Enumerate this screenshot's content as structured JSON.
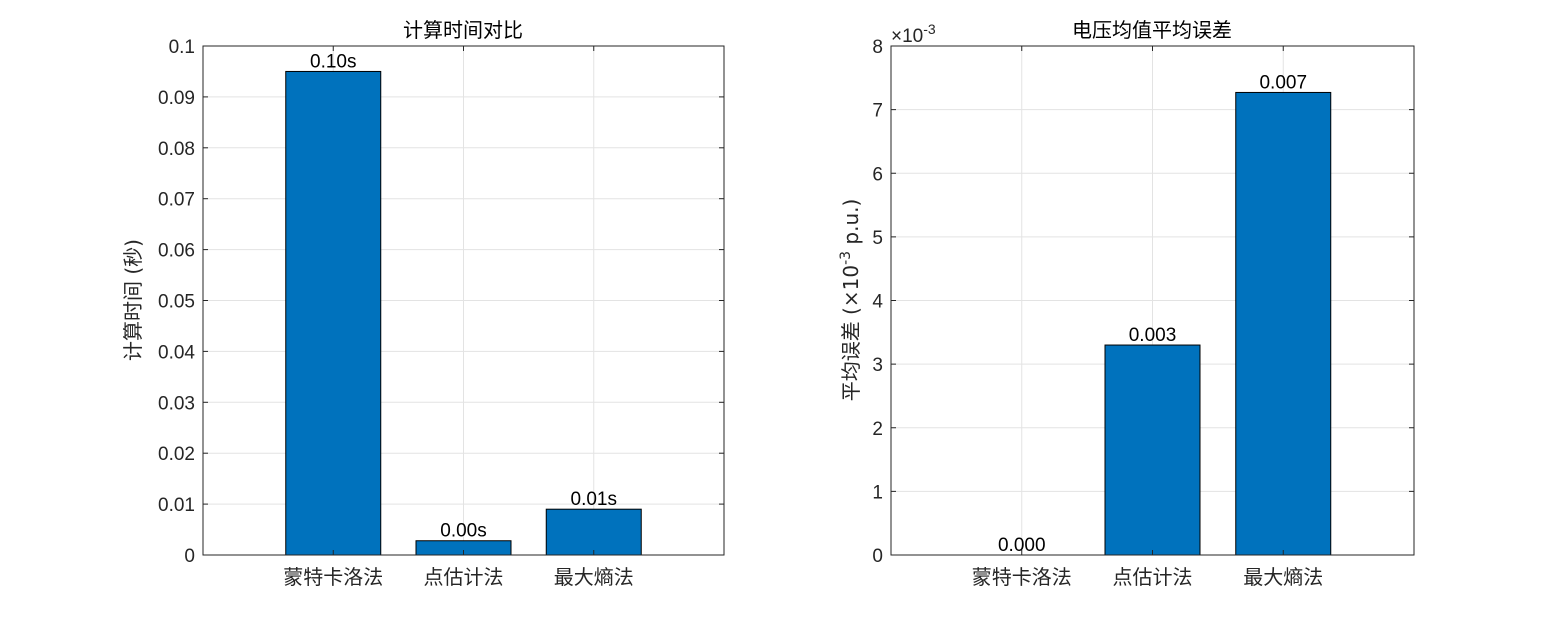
{
  "chart_data": [
    {
      "type": "bar",
      "title": "计算时间对比",
      "ylabel": "计算时间 (秒)",
      "categories": [
        "蒙特卡洛法",
        "点估计法",
        "最大熵法"
      ],
      "values": [
        0.095,
        0.0028,
        0.009
      ],
      "data_labels": [
        "0.10s",
        "0.00s",
        "0.01s"
      ],
      "ylim": [
        0,
        0.1
      ],
      "yticks": [
        0,
        0.01,
        0.02,
        0.03,
        0.04,
        0.05,
        0.06,
        0.07,
        0.08,
        0.09,
        0.1
      ],
      "ytick_labels": [
        "0",
        "0.01",
        "0.02",
        "0.03",
        "0.04",
        "0.05",
        "0.06",
        "0.07",
        "0.08",
        "0.09",
        "0.1"
      ],
      "grid": true,
      "bar_color": "#0072BD"
    },
    {
      "type": "bar",
      "title": "电压均值平均误差",
      "ylabel_prefix": "平均误差 (×10",
      "ylabel_exp": "-3",
      "ylabel_suffix": " p.u.)",
      "exponent_base": "×10",
      "exponent_power": "-3",
      "categories": [
        "蒙特卡洛法",
        "点估计法",
        "最大熵法"
      ],
      "values": [
        0,
        3.3,
        7.27
      ],
      "data_labels": [
        "0.000",
        "0.003",
        "0.007"
      ],
      "ylim": [
        0,
        8
      ],
      "yticks": [
        0,
        1,
        2,
        3,
        4,
        5,
        6,
        7,
        8
      ],
      "ytick_labels": [
        "0",
        "1",
        "2",
        "3",
        "4",
        "5",
        "6",
        "7",
        "8"
      ],
      "grid": true,
      "bar_color": "#0072BD"
    }
  ]
}
